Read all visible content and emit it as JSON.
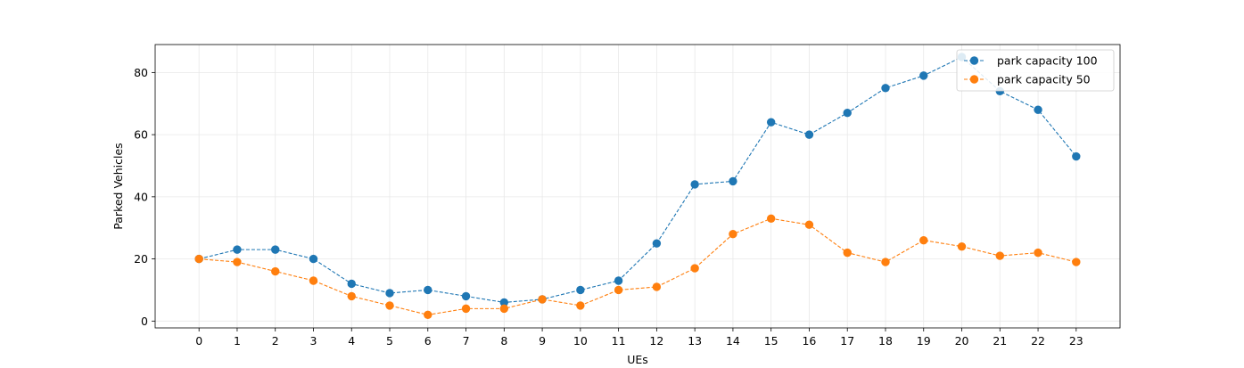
{
  "chart_data": {
    "type": "line",
    "xlabel": "UEs",
    "ylabel": "Parked Vehicles",
    "x": [
      0,
      1,
      2,
      3,
      4,
      5,
      6,
      7,
      8,
      9,
      10,
      11,
      12,
      13,
      14,
      15,
      16,
      17,
      18,
      19,
      20,
      21,
      22,
      23
    ],
    "x_tick_labels": [
      "0",
      "1",
      "2",
      "3",
      "4",
      "5",
      "6",
      "7",
      "8",
      "9",
      "10",
      "11",
      "12",
      "13",
      "14",
      "15",
      "16",
      "17",
      "18",
      "19",
      "20",
      "21",
      "22",
      "23"
    ],
    "y_ticks": [
      0,
      20,
      40,
      60,
      80
    ],
    "y_tick_labels": [
      "0",
      "20",
      "40",
      "60",
      "80"
    ],
    "xlim": [
      -1.15,
      24.15
    ],
    "ylim": [
      -2.2,
      89
    ],
    "grid": true,
    "legend_position": "top-right",
    "series": [
      {
        "name": "park capacity 100",
        "color": "#1f77b4",
        "line_style": "dashed",
        "marker": "circle",
        "values": [
          20,
          23,
          23,
          20,
          12,
          9,
          10,
          8,
          6,
          7,
          10,
          13,
          25,
          44,
          45,
          64,
          60,
          67,
          75,
          79,
          85,
          74,
          68,
          53
        ]
      },
      {
        "name": "park capacity 50",
        "color": "#ff7f0e",
        "line_style": "dashed",
        "marker": "circle",
        "values": [
          20,
          19,
          16,
          13,
          8,
          5,
          2,
          4,
          4,
          7,
          5,
          10,
          11,
          17,
          28,
          33,
          31,
          22,
          19,
          26,
          24,
          21,
          22,
          19
        ]
      }
    ]
  }
}
